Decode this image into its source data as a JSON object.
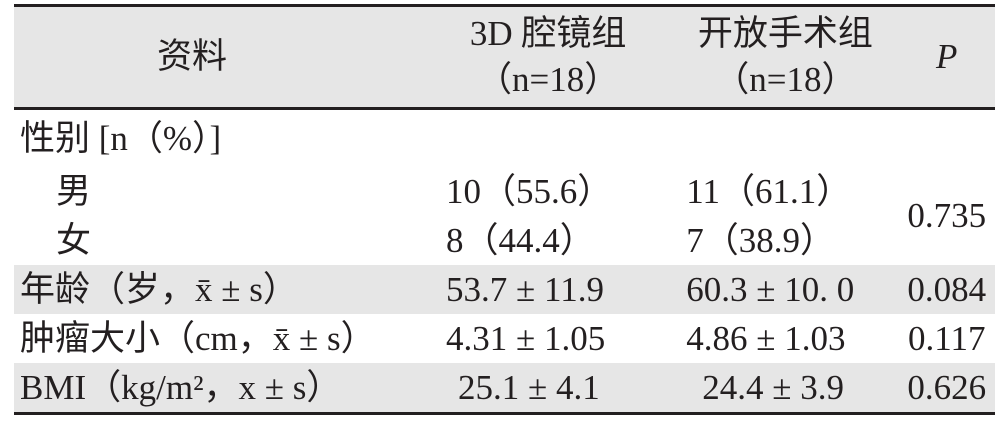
{
  "table": {
    "headers": {
      "item": "资料",
      "group1": "3D 腔镜组",
      "group1_n": "（n=18）",
      "group2": "开放手术组",
      "group2_n": "（n=18）",
      "p": "P"
    },
    "rows": [
      {
        "label": "性别 [n（%）]",
        "g1": "",
        "g2": "",
        "p": ""
      },
      {
        "label": "男",
        "g1": "10（55.6）",
        "g2": "11（61.1）",
        "p": "0.735"
      },
      {
        "label": "女",
        "g1": "8（44.4）",
        "g2": "7（38.9）",
        "p": ""
      },
      {
        "label": "年龄（岁，x̄ ± s）",
        "g1": "53.7 ± 11.9",
        "g2": "60.3 ± 10. 0",
        "p": "0.084"
      },
      {
        "label": "肿瘤大小（cm，x̄ ± s）",
        "g1": "4.31 ± 1.05",
        "g2": "4.86 ± 1.03",
        "p": "0.117"
      },
      {
        "label": "BMI（kg/m²，x ± s）",
        "g1": "25.1 ± 4.1",
        "g2": "24.4 ± 3.9",
        "p": "0.626"
      }
    ]
  }
}
